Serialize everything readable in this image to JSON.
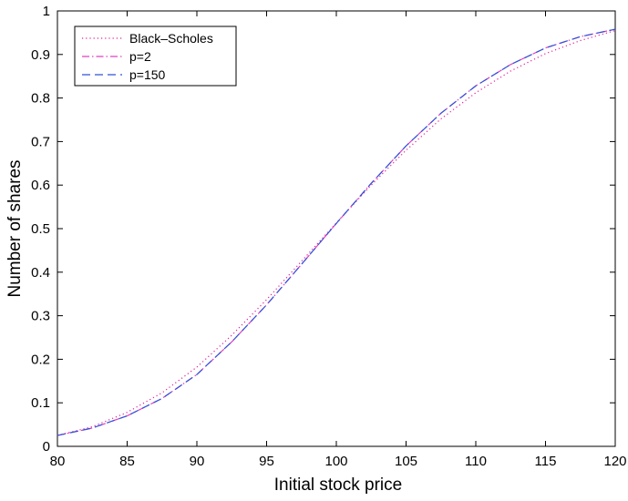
{
  "chart_data": {
    "type": "line",
    "title": "",
    "xlabel": "Initial stock price",
    "ylabel": "Number of shares",
    "xlim": [
      80,
      120
    ],
    "ylim": [
      0,
      1
    ],
    "xticks": [
      80,
      85,
      90,
      95,
      100,
      105,
      110,
      115,
      120
    ],
    "yticks": [
      0,
      0.1,
      0.2,
      0.3,
      0.4,
      0.5,
      0.6,
      0.7,
      0.8,
      0.9,
      1
    ],
    "xtick_labels": [
      "80",
      "85",
      "90",
      "95",
      "100",
      "105",
      "110",
      "115",
      "120"
    ],
    "ytick_labels": [
      "0",
      "0.1",
      "0.2",
      "0.3",
      "0.4",
      "0.5",
      "0.6",
      "0.7",
      "0.8",
      "0.9",
      "1"
    ],
    "grid": false,
    "legend_position": "top-left",
    "x": [
      80,
      82.5,
      85,
      87.5,
      90,
      92.5,
      95,
      97.5,
      100,
      102.5,
      105,
      107.5,
      110,
      112.5,
      115,
      117.5,
      120
    ],
    "series": [
      {
        "name": "Black–Scholes",
        "color": "#e0209a",
        "style": "dotted",
        "values": [
          0.025,
          0.045,
          0.078,
          0.123,
          0.182,
          0.255,
          0.337,
          0.425,
          0.513,
          0.6,
          0.68,
          0.752,
          0.812,
          0.862,
          0.902,
          0.932,
          0.955
        ]
      },
      {
        "name": "p=2",
        "color": "#e040c0",
        "style": "dashdot",
        "values": [
          0.025,
          0.042,
          0.07,
          0.11,
          0.165,
          0.24,
          0.325,
          0.418,
          0.512,
          0.604,
          0.69,
          0.765,
          0.828,
          0.877,
          0.915,
          0.941,
          0.958
        ]
      },
      {
        "name": "p=150",
        "color": "#3050d8",
        "style": "dashed",
        "values": [
          0.025,
          0.042,
          0.07,
          0.11,
          0.165,
          0.24,
          0.325,
          0.418,
          0.512,
          0.604,
          0.69,
          0.765,
          0.828,
          0.877,
          0.915,
          0.941,
          0.958
        ]
      }
    ]
  }
}
